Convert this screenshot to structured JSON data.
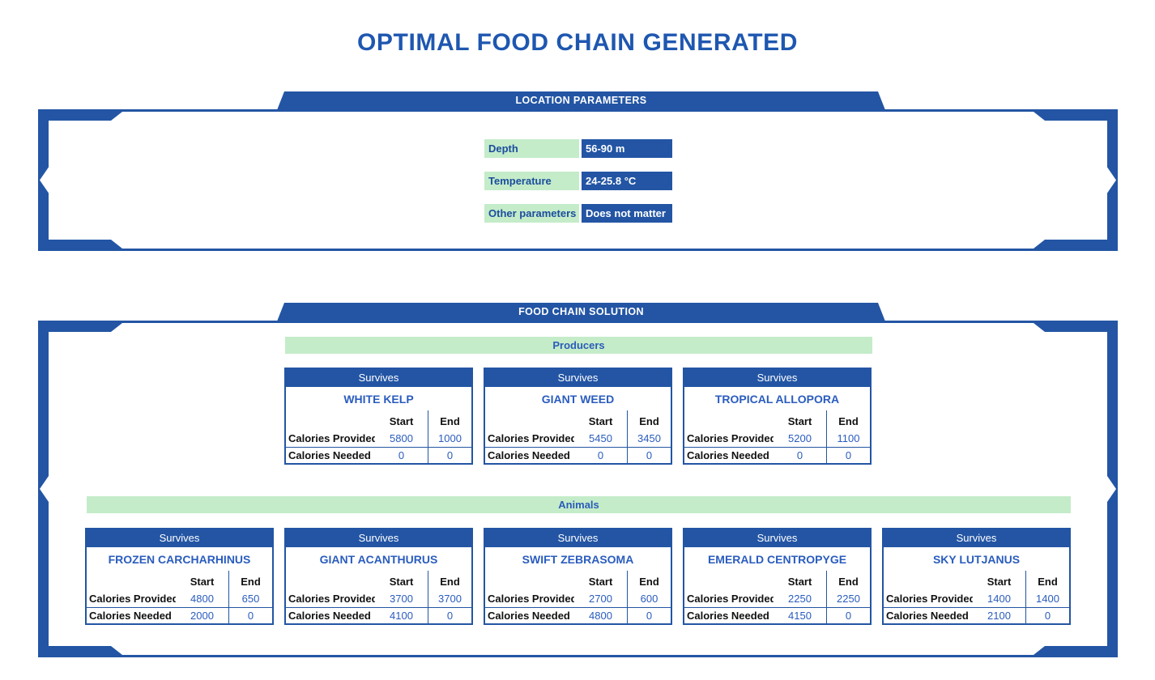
{
  "title": "OPTIMAL FOOD CHAIN GENERATED",
  "colors": {
    "primary_blue": "#2355a4",
    "accent_blue": "#2a5cbe",
    "title_blue": "#1e57b0",
    "light_green": "#c4ecc9"
  },
  "labels": {
    "survives": "Survives",
    "start": "Start",
    "end": "End",
    "provided": "Calories Provided",
    "needed": "Calories Needed"
  },
  "location_parameters": {
    "banner": "LOCATION PARAMETERS",
    "rows": [
      {
        "label": "Depth",
        "value": "56-90 m"
      },
      {
        "label": "Temperature",
        "value": "24-25.8 °C"
      },
      {
        "label": "Other parameters",
        "value": "Does not matter"
      }
    ]
  },
  "food_chain": {
    "banner": "FOOD CHAIN SOLUTION",
    "producers": {
      "band_label": "Producers",
      "cards": [
        {
          "name": "WHITE KELP",
          "provided": {
            "start": "5800",
            "end": "1000"
          },
          "needed": {
            "start": "0",
            "end": "0"
          }
        },
        {
          "name": "GIANT WEED",
          "provided": {
            "start": "5450",
            "end": "3450"
          },
          "needed": {
            "start": "0",
            "end": "0"
          }
        },
        {
          "name": "TROPICAL ALLOPORA",
          "provided": {
            "start": "5200",
            "end": "1100"
          },
          "needed": {
            "start": "0",
            "end": "0"
          }
        }
      ]
    },
    "animals": {
      "band_label": "Animals",
      "cards": [
        {
          "name": "FROZEN CARCHARHINUS",
          "provided": {
            "start": "4800",
            "end": "650"
          },
          "needed": {
            "start": "2000",
            "end": "0"
          }
        },
        {
          "name": "GIANT ACANTHURUS",
          "provided": {
            "start": "3700",
            "end": "3700"
          },
          "needed": {
            "start": "4100",
            "end": "0"
          }
        },
        {
          "name": "SWIFT ZEBRASOMA",
          "provided": {
            "start": "2700",
            "end": "600"
          },
          "needed": {
            "start": "4800",
            "end": "0"
          }
        },
        {
          "name": "EMERALD CENTROPYGE",
          "provided": {
            "start": "2250",
            "end": "2250"
          },
          "needed": {
            "start": "4150",
            "end": "0"
          }
        },
        {
          "name": "SKY LUTJANUS",
          "provided": {
            "start": "1400",
            "end": "1400"
          },
          "needed": {
            "start": "2100",
            "end": "0"
          }
        }
      ]
    }
  }
}
